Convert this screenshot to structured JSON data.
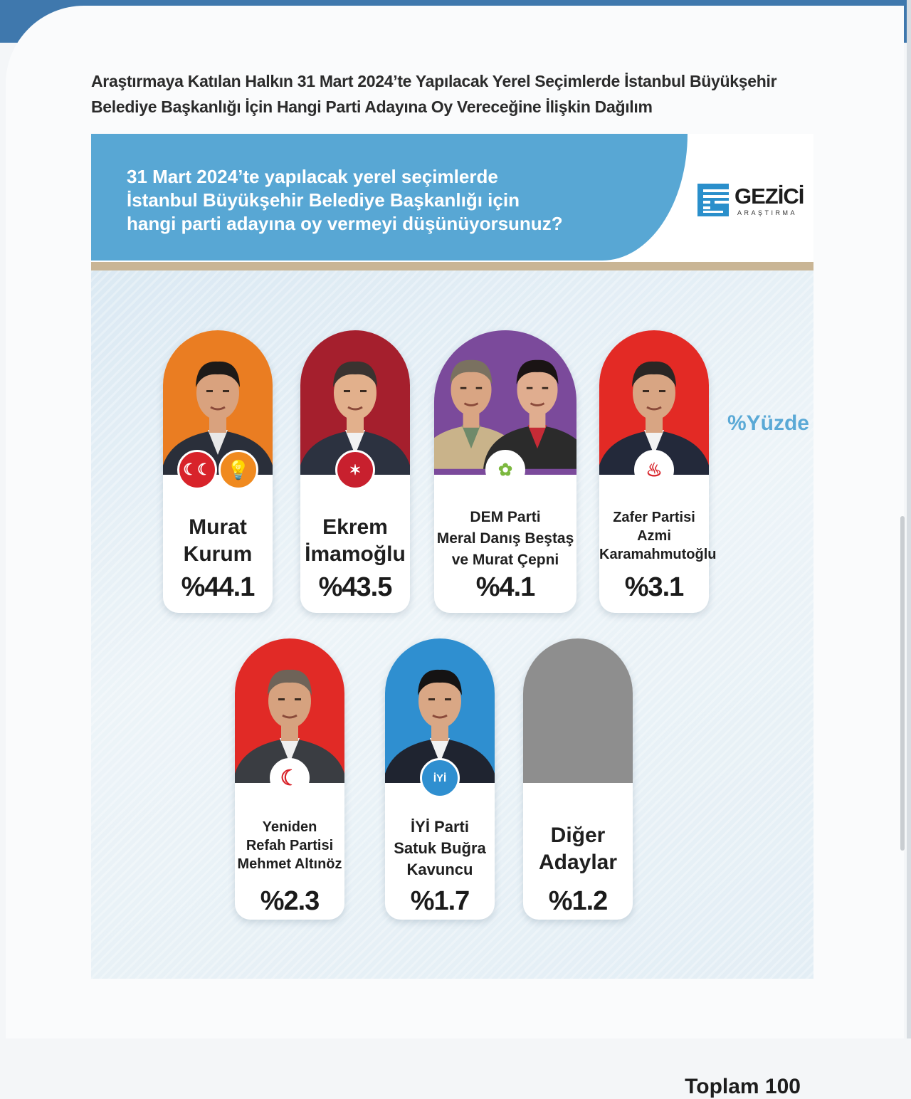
{
  "page_title": {
    "line1": "Araştırmaya Katılan Halkın 31 Mart 2024’te Yapılacak Yerel Seçimlerde İstanbul Büyükşehir",
    "line2": "Belediye Başkanlığı İçin Hangi Parti Adayına Oy Vereceğine İlişkin Dağılım"
  },
  "question": {
    "line1": "31 Mart 2024’te yapılacak yerel seçimlerde",
    "line2": "İstanbul Büyükşehir Belediye Başkanlığı için",
    "line3": "hangi parti adayına oy vermeyi düşünüyorsunuz?"
  },
  "logo": {
    "name": "GEZİCİ",
    "sub": "ARAŞTIRMA"
  },
  "unit_label": "%Yüzde",
  "total_label": "Toplam 100",
  "colors": {
    "banner": "#58a7d4",
    "divider": "#c9b595",
    "ak_orange": "#ea7d22",
    "chp_red": "#a51f2d",
    "dem_purple": "#7b4a9b",
    "zafer_red": "#e32a25",
    "yrp_red": "#e12a26",
    "iyi_blue": "#2f8fd0",
    "other_gray": "#8e8e8e"
  },
  "candidates": [
    {
      "name_lines": [
        "Murat",
        "Kurum"
      ],
      "pct_label": "%44.1",
      "icons": [
        "mhp-logo-icon",
        "ak-party-logo-icon"
      ]
    },
    {
      "name_lines": [
        "Ekrem",
        "İmamoğlu"
      ],
      "pct_label": "%43.5",
      "icons": [
        "chp-logo-icon"
      ]
    },
    {
      "name_lines": [
        "DEM Parti",
        "Meral Danış Beştaş",
        "ve Murat Çepni"
      ],
      "pct_label": "%4.1",
      "icons": [
        "dem-party-logo-icon"
      ]
    },
    {
      "name_lines": [
        "Zafer Partisi",
        "Azmi",
        "Karamahmutoğlu"
      ],
      "pct_label": "%3.1",
      "icons": [
        "zafer-party-logo-icon"
      ]
    },
    {
      "name_lines": [
        "Yeniden",
        "Refah Partisi",
        "Mehmet Altınöz"
      ],
      "pct_label": "%2.3",
      "icons": [
        "yrp-logo-icon"
      ]
    },
    {
      "name_lines": [
        "İYİ Parti",
        "Satuk Buğra",
        "Kavuncu"
      ],
      "pct_label": "%1.7",
      "icons": [
        "iyi-party-logo-icon"
      ],
      "badge_text": "İYİ"
    },
    {
      "name_lines": [
        "Diğer",
        "Adaylar"
      ],
      "pct_label": "%1.2",
      "icons": []
    }
  ],
  "chart_data": {
    "type": "bar",
    "title": "31 Mart 2024’te yapılacak yerel seçimlerde İstanbul Büyükşehir Belediye Başkanlığı için hangi parti adayına oy vermeyi düşünüyorsunuz?",
    "categories": [
      "Murat Kurum",
      "Ekrem İmamoğlu",
      "DEM Parti Meral Danış Beştaş ve Murat Çepni",
      "Zafer Partisi Azmi Karamahmutoğlu",
      "Yeniden Refah Partisi Mehmet Altınöz",
      "İYİ Parti Satuk Buğra Kavuncu",
      "Diğer Adaylar"
    ],
    "values": [
      44.1,
      43.5,
      4.1,
      3.1,
      2.3,
      1.7,
      1.2
    ],
    "ylabel": "%Yüzde",
    "total": 100
  }
}
